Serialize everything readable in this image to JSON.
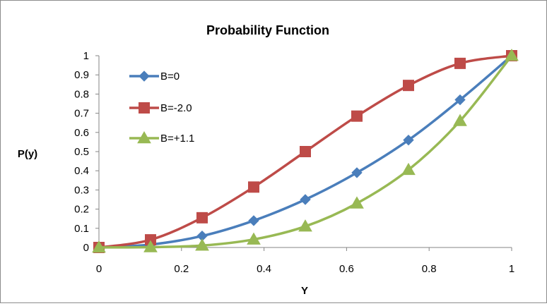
{
  "chart_data": {
    "type": "line",
    "title": "Probability Function",
    "xlabel": "Y",
    "ylabel": "P(y)",
    "xlim": [
      0,
      1
    ],
    "ylim": [
      0,
      1
    ],
    "x_ticks": [
      "0",
      "0.2",
      "0.4",
      "0.6",
      "0.8",
      "1"
    ],
    "y_ticks": [
      "0",
      "0.1",
      "0.2",
      "0.3",
      "0.4",
      "0.5",
      "0.6",
      "0.7",
      "0.8",
      "0.9",
      "1"
    ],
    "x": [
      0,
      0.125,
      0.25,
      0.375,
      0.5,
      0.625,
      0.75,
      0.875,
      1
    ],
    "grid": false,
    "legend_position": "top-left",
    "series": [
      {
        "name": "B=0",
        "color": "#4a7ebb",
        "marker": "diamond",
        "values": [
          0,
          0.015,
          0.06,
          0.14,
          0.25,
          0.39,
          0.56,
          0.77,
          1.0
        ]
      },
      {
        "name": "B=-2.0",
        "color": "#be4b48",
        "marker": "square",
        "values": [
          0,
          0.04,
          0.155,
          0.315,
          0.5,
          0.685,
          0.845,
          0.96,
          1.0
        ]
      },
      {
        "name": "B=+1.1",
        "color": "#98b954",
        "marker": "triangle",
        "values": [
          0,
          0.002,
          0.01,
          0.042,
          0.11,
          0.23,
          0.405,
          0.66,
          1.0
        ]
      }
    ]
  }
}
